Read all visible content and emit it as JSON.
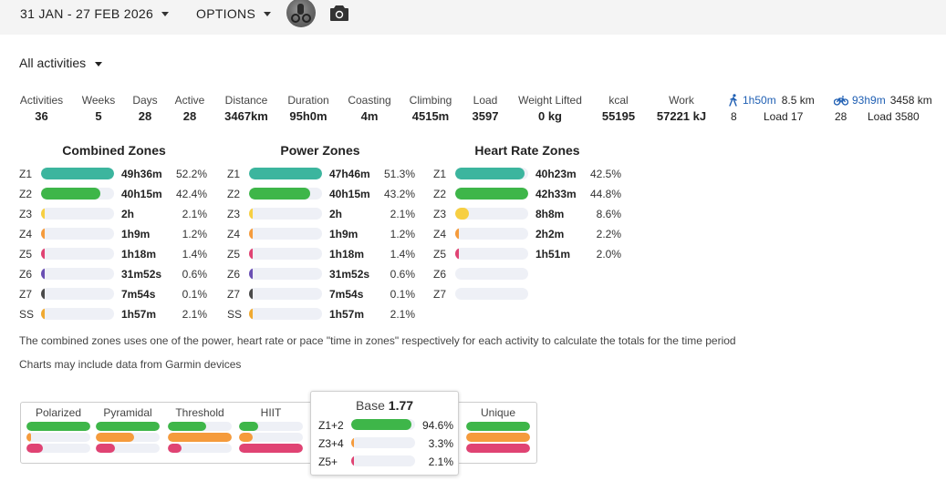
{
  "toolbar": {
    "date_range": "31 JAN - 27 FEB 2026",
    "options_label": "OPTIONS",
    "avatar_icon": "athlete-photo",
    "camera_icon": "camera-icon"
  },
  "activity_filter": {
    "label": "All activities"
  },
  "stats": [
    {
      "label": "Activities",
      "value": "36"
    },
    {
      "label": "Weeks",
      "value": "5"
    },
    {
      "label": "Days",
      "value": "28"
    },
    {
      "label": "Active",
      "value": "28"
    },
    {
      "label": "Distance",
      "value": "3467km"
    },
    {
      "label": "Duration",
      "value": "95h0m"
    },
    {
      "label": "Coasting",
      "value": "4m"
    },
    {
      "label": "Climbing",
      "value": "4515m"
    },
    {
      "label": "Load",
      "value": "3597"
    },
    {
      "label": "Weight Lifted",
      "value": "0 kg"
    },
    {
      "label": "kcal",
      "value": "55195"
    },
    {
      "label": "Work",
      "value": "57221 kJ"
    }
  ],
  "sports": [
    {
      "icon": "walk-icon",
      "time": "1h50m",
      "distance": "8.5 km",
      "count": "8",
      "load": "Load 17"
    },
    {
      "icon": "bike-icon",
      "time": "93h9m",
      "distance": "3458 km",
      "count": "28",
      "load": "Load 3580"
    }
  ],
  "zone_colors": {
    "Z1": "#3cb59e",
    "Z2": "#3eb649",
    "Z3": "#f7cf42",
    "Z4": "#f59b3c",
    "Z5": "#e04373",
    "Z6": "#6a4fb3",
    "Z7": "#4a4a4a",
    "SS": "#f0a930"
  },
  "zones": {
    "combined": {
      "title": "Combined Zones",
      "rows": [
        {
          "zone": "Z1",
          "time": "49h36m",
          "percent": "52.2%",
          "fill": 1.0
        },
        {
          "zone": "Z2",
          "time": "40h15m",
          "percent": "42.4%",
          "fill": 0.81
        },
        {
          "zone": "Z3",
          "time": "2h",
          "percent": "2.1%",
          "fill": 0.04
        },
        {
          "zone": "Z4",
          "time": "1h9m",
          "percent": "1.2%",
          "fill": 0.025
        },
        {
          "zone": "Z5",
          "time": "1h18m",
          "percent": "1.4%",
          "fill": 0.027
        },
        {
          "zone": "Z6",
          "time": "31m52s",
          "percent": "0.6%",
          "fill": 0.012
        },
        {
          "zone": "Z7",
          "time": "7m54s",
          "percent": "0.1%",
          "fill": 0.005
        },
        {
          "zone": "SS",
          "time": "1h57m",
          "percent": "2.1%",
          "fill": 0.04
        }
      ]
    },
    "power": {
      "title": "Power Zones",
      "rows": [
        {
          "zone": "Z1",
          "time": "47h46m",
          "percent": "51.3%",
          "fill": 1.0
        },
        {
          "zone": "Z2",
          "time": "40h15m",
          "percent": "43.2%",
          "fill": 0.84
        },
        {
          "zone": "Z3",
          "time": "2h",
          "percent": "2.1%",
          "fill": 0.04
        },
        {
          "zone": "Z4",
          "time": "1h9m",
          "percent": "1.2%",
          "fill": 0.025
        },
        {
          "zone": "Z5",
          "time": "1h18m",
          "percent": "1.4%",
          "fill": 0.027
        },
        {
          "zone": "Z6",
          "time": "31m52s",
          "percent": "0.6%",
          "fill": 0.012
        },
        {
          "zone": "Z7",
          "time": "7m54s",
          "percent": "0.1%",
          "fill": 0.005
        },
        {
          "zone": "SS",
          "time": "1h57m",
          "percent": "2.1%",
          "fill": 0.04
        }
      ]
    },
    "heart_rate": {
      "title": "Heart Rate Zones",
      "rows": [
        {
          "zone": "Z1",
          "time": "40h23m",
          "percent": "42.5%",
          "fill": 0.95
        },
        {
          "zone": "Z2",
          "time": "42h33m",
          "percent": "44.8%",
          "fill": 1.0
        },
        {
          "zone": "Z3",
          "time": "8h8m",
          "percent": "8.6%",
          "fill": 0.19
        },
        {
          "zone": "Z4",
          "time": "2h2m",
          "percent": "2.2%",
          "fill": 0.048
        },
        {
          "zone": "Z5",
          "time": "1h51m",
          "percent": "2.0%",
          "fill": 0.044
        },
        {
          "zone": "Z6",
          "time": "",
          "percent": "",
          "fill": 0
        },
        {
          "zone": "Z7",
          "time": "",
          "percent": "",
          "fill": 0
        }
      ]
    }
  },
  "notes": {
    "combined_zones": "The combined zones uses one of the power, heart rate or pace \"time in zones\" respectively for each activity to calculate the totals for the time period",
    "garmin": "Charts may include data from Garmin devices"
  },
  "distribution": {
    "columns": [
      {
        "label": "Polarized",
        "bars": [
          1.0,
          0.06,
          0.25
        ]
      },
      {
        "label": "Pyramidal",
        "bars": [
          1.0,
          0.6,
          0.3
        ]
      },
      {
        "label": "Threshold",
        "bars": [
          0.6,
          1.0,
          0.22
        ]
      },
      {
        "label": "HIIT",
        "bars": [
          0.3,
          0.22,
          1.0
        ]
      },
      {
        "label": "Unique",
        "bars": [
          1.0,
          1.0,
          1.0
        ]
      }
    ],
    "bar_colors": [
      "#3eb649",
      "#f59b3c",
      "#e04373"
    ]
  },
  "popup": {
    "title": "Base",
    "score": "1.77",
    "rows": [
      {
        "label": "Z1+2",
        "percent": "94.6%",
        "fill": 0.946,
        "color": "#3eb649"
      },
      {
        "label": "Z3+4",
        "percent": "3.3%",
        "fill": 0.033,
        "color": "#f59b3c"
      },
      {
        "label": "Z5+",
        "percent": "2.1%",
        "fill": 0.021,
        "color": "#e04373"
      }
    ]
  }
}
